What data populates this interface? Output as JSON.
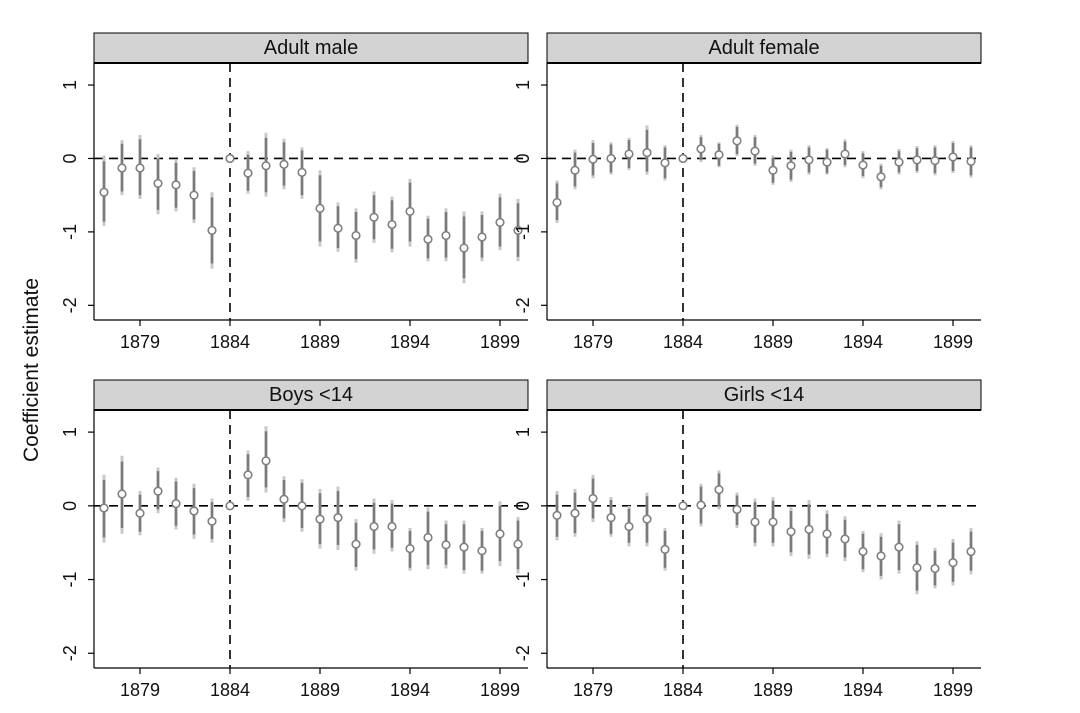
{
  "chart_data": {
    "type": "scatter",
    "style": "coefficient plot with confidence intervals",
    "ylabel": "Coefficient estimate",
    "x_ticks": [
      1879,
      1884,
      1889,
      1894,
      1899
    ],
    "y_ticks": [
      1,
      0,
      -1,
      -2
    ],
    "xlim": [
      1877,
      1900
    ],
    "reference_year": 1884,
    "colors": {
      "header_fill": "#d3d3d3",
      "estimate": "#808080",
      "ci_inner": "#7a7a7a",
      "ci_outer": "#c8c8c8",
      "reference": "#000000"
    },
    "panels": [
      {
        "title": "Adult male",
        "ylim": [
          -2.2,
          1.3
        ],
        "points": [
          {
            "x": 1877,
            "y": -0.46,
            "lo95": -0.92,
            "hi95": 0.04,
            "lo90": -0.86,
            "hi90": -0.04
          },
          {
            "x": 1878,
            "y": -0.13,
            "lo95": -0.5,
            "hi95": 0.25,
            "lo90": -0.45,
            "hi90": 0.2
          },
          {
            "x": 1879,
            "y": -0.13,
            "lo95": -0.55,
            "hi95": 0.32,
            "lo90": -0.5,
            "hi90": 0.26
          },
          {
            "x": 1880,
            "y": -0.34,
            "lo95": -0.76,
            "hi95": 0.06,
            "lo90": -0.7,
            "hi90": 0.0
          },
          {
            "x": 1881,
            "y": -0.36,
            "lo95": -0.72,
            "hi95": -0.02,
            "lo90": -0.67,
            "hi90": -0.06
          },
          {
            "x": 1882,
            "y": -0.5,
            "lo95": -0.88,
            "hi95": -0.12,
            "lo90": -0.83,
            "hi90": -0.17
          },
          {
            "x": 1883,
            "y": -0.98,
            "lo95": -1.5,
            "hi95": -0.46,
            "lo90": -1.43,
            "hi90": -0.53
          },
          {
            "x": 1884,
            "y": 0.0,
            "lo95": 0.0,
            "hi95": 0.0,
            "lo90": 0.0,
            "hi90": 0.0
          },
          {
            "x": 1885,
            "y": -0.2,
            "lo95": -0.48,
            "hi95": 0.1,
            "lo90": -0.44,
            "hi90": 0.05
          },
          {
            "x": 1886,
            "y": -0.1,
            "lo95": -0.52,
            "hi95": 0.35,
            "lo90": -0.46,
            "hi90": 0.28
          },
          {
            "x": 1887,
            "y": -0.08,
            "lo95": -0.42,
            "hi95": 0.27,
            "lo90": -0.37,
            "hi90": 0.22
          },
          {
            "x": 1888,
            "y": -0.19,
            "lo95": -0.55,
            "hi95": 0.15,
            "lo90": -0.5,
            "hi90": 0.11
          },
          {
            "x": 1889,
            "y": -0.68,
            "lo95": -1.2,
            "hi95": -0.16,
            "lo90": -1.13,
            "hi90": -0.23
          },
          {
            "x": 1890,
            "y": -0.95,
            "lo95": -1.27,
            "hi95": -0.6,
            "lo90": -1.22,
            "hi90": -0.65
          },
          {
            "x": 1891,
            "y": -1.05,
            "lo95": -1.42,
            "hi95": -0.68,
            "lo90": -1.37,
            "hi90": -0.73
          },
          {
            "x": 1892,
            "y": -0.8,
            "lo95": -1.15,
            "hi95": -0.45,
            "lo90": -1.1,
            "hi90": -0.5
          },
          {
            "x": 1893,
            "y": -0.9,
            "lo95": -1.28,
            "hi95": -0.52,
            "lo90": -1.23,
            "hi90": -0.57
          },
          {
            "x": 1894,
            "y": -0.72,
            "lo95": -1.2,
            "hi95": -0.28,
            "lo90": -1.13,
            "hi90": -0.33
          },
          {
            "x": 1895,
            "y": -1.1,
            "lo95": -1.4,
            "hi95": -0.78,
            "lo90": -1.36,
            "hi90": -0.82
          },
          {
            "x": 1896,
            "y": -1.05,
            "lo95": -1.4,
            "hi95": -0.68,
            "lo90": -1.35,
            "hi90": -0.73
          },
          {
            "x": 1897,
            "y": -1.22,
            "lo95": -1.7,
            "hi95": -0.72,
            "lo90": -1.63,
            "hi90": -0.79
          },
          {
            "x": 1898,
            "y": -1.07,
            "lo95": -1.4,
            "hi95": -0.72,
            "lo90": -1.35,
            "hi90": -0.77
          },
          {
            "x": 1899,
            "y": -0.87,
            "lo95": -1.25,
            "hi95": -0.48,
            "lo90": -1.2,
            "hi90": -0.53
          },
          {
            "x": 1900,
            "y": -0.98,
            "lo95": -1.4,
            "hi95": -0.55,
            "lo90": -1.34,
            "hi90": -0.61
          }
        ]
      },
      {
        "title": "Adult female",
        "ylim": [
          -2.2,
          1.3
        ],
        "points": [
          {
            "x": 1877,
            "y": -0.6,
            "lo95": -0.88,
            "hi95": -0.3,
            "lo90": -0.84,
            "hi90": -0.34
          },
          {
            "x": 1878,
            "y": -0.16,
            "lo95": -0.42,
            "hi95": 0.12,
            "lo90": -0.38,
            "hi90": 0.08
          },
          {
            "x": 1879,
            "y": -0.01,
            "lo95": -0.27,
            "hi95": 0.25,
            "lo90": -0.23,
            "hi90": 0.21
          },
          {
            "x": 1880,
            "y": 0.0,
            "lo95": -0.22,
            "hi95": 0.22,
            "lo90": -0.19,
            "hi90": 0.19
          },
          {
            "x": 1881,
            "y": 0.06,
            "lo95": -0.16,
            "hi95": 0.28,
            "lo90": -0.13,
            "hi90": 0.25
          },
          {
            "x": 1882,
            "y": 0.08,
            "lo95": -0.22,
            "hi95": 0.45,
            "lo90": -0.18,
            "hi90": 0.39
          },
          {
            "x": 1883,
            "y": -0.06,
            "lo95": -0.3,
            "hi95": 0.18,
            "lo90": -0.27,
            "hi90": 0.15
          },
          {
            "x": 1884,
            "y": 0.0,
            "lo95": 0.0,
            "hi95": 0.0,
            "lo90": 0.0,
            "hi90": 0.0
          },
          {
            "x": 1885,
            "y": 0.13,
            "lo95": -0.05,
            "hi95": 0.32,
            "lo90": -0.02,
            "hi90": 0.29
          },
          {
            "x": 1886,
            "y": 0.05,
            "lo95": -0.12,
            "hi95": 0.22,
            "lo90": -0.1,
            "hi90": 0.2
          },
          {
            "x": 1887,
            "y": 0.24,
            "lo95": 0.03,
            "hi95": 0.46,
            "lo90": 0.06,
            "hi90": 0.43
          },
          {
            "x": 1888,
            "y": 0.1,
            "lo95": -0.1,
            "hi95": 0.32,
            "lo90": -0.07,
            "hi90": 0.29
          },
          {
            "x": 1889,
            "y": -0.16,
            "lo95": -0.36,
            "hi95": 0.04,
            "lo90": -0.33,
            "hi90": 0.01
          },
          {
            "x": 1890,
            "y": -0.1,
            "lo95": -0.32,
            "hi95": 0.12,
            "lo90": -0.29,
            "hi90": 0.09
          },
          {
            "x": 1891,
            "y": -0.02,
            "lo95": -0.22,
            "hi95": 0.18,
            "lo90": -0.19,
            "hi90": 0.15
          },
          {
            "x": 1892,
            "y": -0.05,
            "lo95": -0.22,
            "hi95": 0.14,
            "lo90": -0.2,
            "hi90": 0.12
          },
          {
            "x": 1893,
            "y": 0.06,
            "lo95": -0.12,
            "hi95": 0.26,
            "lo90": -0.09,
            "hi90": 0.23
          },
          {
            "x": 1894,
            "y": -0.09,
            "lo95": -0.27,
            "hi95": 0.1,
            "lo90": -0.24,
            "hi90": 0.07
          },
          {
            "x": 1895,
            "y": -0.25,
            "lo95": -0.42,
            "hi95": -0.07,
            "lo90": -0.39,
            "hi90": -0.1
          },
          {
            "x": 1896,
            "y": -0.05,
            "lo95": -0.22,
            "hi95": 0.13,
            "lo90": -0.19,
            "hi90": 0.1
          },
          {
            "x": 1897,
            "y": -0.02,
            "lo95": -0.2,
            "hi95": 0.17,
            "lo90": -0.17,
            "hi90": 0.14
          },
          {
            "x": 1898,
            "y": -0.03,
            "lo95": -0.23,
            "hi95": 0.18,
            "lo90": -0.2,
            "hi90": 0.15
          },
          {
            "x": 1899,
            "y": 0.02,
            "lo95": -0.2,
            "hi95": 0.24,
            "lo90": -0.17,
            "hi90": 0.21
          },
          {
            "x": 1900,
            "y": -0.04,
            "lo95": -0.26,
            "hi95": 0.18,
            "lo90": -0.23,
            "hi90": 0.15
          }
        ]
      },
      {
        "title": "Boys <14",
        "ylim": [
          -2.2,
          1.3
        ],
        "points": [
          {
            "x": 1877,
            "y": -0.03,
            "lo95": -0.5,
            "hi95": 0.42,
            "lo90": -0.43,
            "hi90": 0.35
          },
          {
            "x": 1878,
            "y": 0.16,
            "lo95": -0.38,
            "hi95": 0.68,
            "lo90": -0.3,
            "hi90": 0.6
          },
          {
            "x": 1879,
            "y": -0.1,
            "lo95": -0.4,
            "hi95": 0.2,
            "lo90": -0.35,
            "hi90": 0.15
          },
          {
            "x": 1880,
            "y": 0.2,
            "lo95": -0.1,
            "hi95": 0.52,
            "lo90": -0.05,
            "hi90": 0.47
          },
          {
            "x": 1881,
            "y": 0.03,
            "lo95": -0.32,
            "hi95": 0.38,
            "lo90": -0.27,
            "hi90": 0.33
          },
          {
            "x": 1882,
            "y": -0.07,
            "lo95": -0.45,
            "hi95": 0.3,
            "lo90": -0.39,
            "hi90": 0.24
          },
          {
            "x": 1883,
            "y": -0.21,
            "lo95": -0.5,
            "hi95": 0.1,
            "lo90": -0.45,
            "hi90": 0.05
          },
          {
            "x": 1884,
            "y": 0.0,
            "lo95": 0.0,
            "hi95": 0.0,
            "lo90": 0.0,
            "hi90": 0.0
          },
          {
            "x": 1885,
            "y": 0.42,
            "lo95": 0.07,
            "hi95": 0.75,
            "lo90": 0.12,
            "hi90": 0.7
          },
          {
            "x": 1886,
            "y": 0.61,
            "lo95": 0.18,
            "hi95": 1.08,
            "lo90": 0.25,
            "hi90": 1.01
          },
          {
            "x": 1887,
            "y": 0.09,
            "lo95": -0.22,
            "hi95": 0.4,
            "lo90": -0.17,
            "hi90": 0.35
          },
          {
            "x": 1888,
            "y": 0.0,
            "lo95": -0.35,
            "hi95": 0.36,
            "lo90": -0.3,
            "hi90": 0.31
          },
          {
            "x": 1889,
            "y": -0.18,
            "lo95": -0.58,
            "hi95": 0.23,
            "lo90": -0.52,
            "hi90": 0.17
          },
          {
            "x": 1890,
            "y": -0.16,
            "lo95": -0.6,
            "hi95": 0.26,
            "lo90": -0.53,
            "hi90": 0.2
          },
          {
            "x": 1891,
            "y": -0.52,
            "lo95": -0.88,
            "hi95": -0.18,
            "lo90": -0.83,
            "hi90": -0.23
          },
          {
            "x": 1892,
            "y": -0.28,
            "lo95": -0.65,
            "hi95": 0.1,
            "lo90": -0.59,
            "hi90": 0.04
          },
          {
            "x": 1893,
            "y": -0.28,
            "lo95": -0.62,
            "hi95": 0.08,
            "lo90": -0.57,
            "hi90": 0.03
          },
          {
            "x": 1894,
            "y": -0.58,
            "lo95": -0.88,
            "hi95": -0.3,
            "lo90": -0.84,
            "hi90": -0.34
          },
          {
            "x": 1895,
            "y": -0.43,
            "lo95": -0.86,
            "hi95": -0.02,
            "lo90": -0.8,
            "hi90": -0.08
          },
          {
            "x": 1896,
            "y": -0.53,
            "lo95": -0.85,
            "hi95": -0.2,
            "lo90": -0.8,
            "hi90": -0.25
          },
          {
            "x": 1897,
            "y": -0.56,
            "lo95": -0.92,
            "hi95": -0.2,
            "lo90": -0.87,
            "hi90": -0.25
          },
          {
            "x": 1898,
            "y": -0.61,
            "lo95": -0.92,
            "hi95": -0.3,
            "lo90": -0.88,
            "hi90": -0.34
          },
          {
            "x": 1899,
            "y": -0.38,
            "lo95": -0.82,
            "hi95": 0.06,
            "lo90": -0.75,
            "hi90": 0.0
          },
          {
            "x": 1900,
            "y": -0.52,
            "lo95": -0.92,
            "hi95": -0.15,
            "lo90": -0.86,
            "hi90": -0.2
          }
        ]
      },
      {
        "title": "Girls <14",
        "ylim": [
          -2.2,
          1.3
        ],
        "points": [
          {
            "x": 1877,
            "y": -0.13,
            "lo95": -0.47,
            "hi95": 0.2,
            "lo90": -0.42,
            "hi90": 0.15
          },
          {
            "x": 1878,
            "y": -0.1,
            "lo95": -0.42,
            "hi95": 0.23,
            "lo90": -0.37,
            "hi90": 0.18
          },
          {
            "x": 1879,
            "y": 0.1,
            "lo95": -0.22,
            "hi95": 0.42,
            "lo90": -0.17,
            "hi90": 0.37
          },
          {
            "x": 1880,
            "y": -0.16,
            "lo95": -0.42,
            "hi95": 0.12,
            "lo90": -0.38,
            "hi90": 0.08
          },
          {
            "x": 1881,
            "y": -0.28,
            "lo95": -0.55,
            "hi95": 0.0,
            "lo90": -0.5,
            "hi90": -0.04
          },
          {
            "x": 1882,
            "y": -0.18,
            "lo95": -0.55,
            "hi95": 0.18,
            "lo90": -0.5,
            "hi90": 0.13
          },
          {
            "x": 1883,
            "y": -0.59,
            "lo95": -0.88,
            "hi95": -0.3,
            "lo90": -0.84,
            "hi90": -0.34
          },
          {
            "x": 1884,
            "y": 0.0,
            "lo95": 0.0,
            "hi95": 0.0,
            "lo90": 0.0,
            "hi90": 0.0
          },
          {
            "x": 1885,
            "y": 0.01,
            "lo95": -0.28,
            "hi95": 0.3,
            "lo90": -0.24,
            "hi90": 0.26
          },
          {
            "x": 1886,
            "y": 0.22,
            "lo95": -0.05,
            "hi95": 0.48,
            "lo90": -0.01,
            "hi90": 0.44
          },
          {
            "x": 1887,
            "y": -0.05,
            "lo95": -0.3,
            "hi95": 0.18,
            "lo90": -0.26,
            "hi90": 0.14
          },
          {
            "x": 1888,
            "y": -0.22,
            "lo95": -0.55,
            "hi95": 0.1,
            "lo90": -0.5,
            "hi90": 0.05
          },
          {
            "x": 1889,
            "y": -0.22,
            "lo95": -0.55,
            "hi95": 0.12,
            "lo90": -0.5,
            "hi90": 0.07
          },
          {
            "x": 1890,
            "y": -0.35,
            "lo95": -0.68,
            "hi95": -0.02,
            "lo90": -0.63,
            "hi90": -0.07
          },
          {
            "x": 1891,
            "y": -0.32,
            "lo95": -0.72,
            "hi95": 0.08,
            "lo90": -0.66,
            "hi90": 0.02
          },
          {
            "x": 1892,
            "y": -0.38,
            "lo95": -0.7,
            "hi95": -0.06,
            "lo90": -0.65,
            "hi90": -0.11
          },
          {
            "x": 1893,
            "y": -0.45,
            "lo95": -0.75,
            "hi95": -0.14,
            "lo90": -0.7,
            "hi90": -0.19
          },
          {
            "x": 1894,
            "y": -0.62,
            "lo95": -0.9,
            "hi95": -0.34,
            "lo90": -0.86,
            "hi90": -0.38
          },
          {
            "x": 1895,
            "y": -0.68,
            "lo95": -1.0,
            "hi95": -0.37,
            "lo90": -0.95,
            "hi90": -0.42
          },
          {
            "x": 1896,
            "y": -0.56,
            "lo95": -0.92,
            "hi95": -0.2,
            "lo90": -0.87,
            "hi90": -0.25
          },
          {
            "x": 1897,
            "y": -0.84,
            "lo95": -1.2,
            "hi95": -0.48,
            "lo90": -1.15,
            "hi90": -0.53
          },
          {
            "x": 1898,
            "y": -0.85,
            "lo95": -1.12,
            "hi95": -0.57,
            "lo90": -1.08,
            "hi90": -0.61
          },
          {
            "x": 1899,
            "y": -0.77,
            "lo95": -1.08,
            "hi95": -0.45,
            "lo90": -1.03,
            "hi90": -0.5
          },
          {
            "x": 1900,
            "y": -0.62,
            "lo95": -0.93,
            "hi95": -0.3,
            "lo90": -0.88,
            "hi90": -0.35
          }
        ]
      }
    ]
  }
}
